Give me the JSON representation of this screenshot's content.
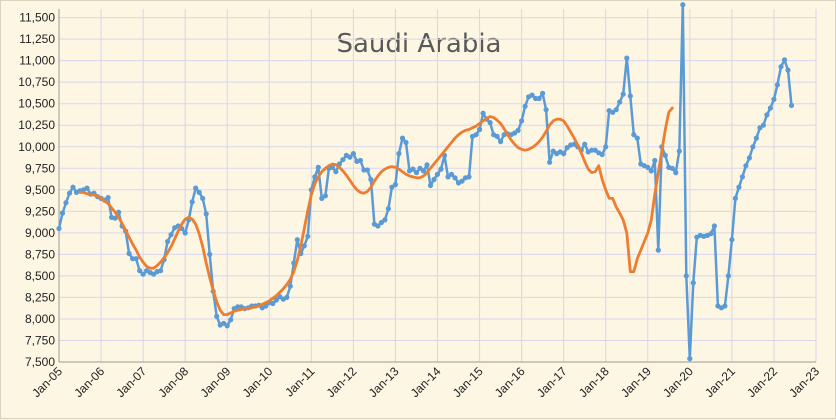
{
  "chart_data": {
    "type": "line",
    "title": "Saudi Arabia",
    "xlabel": "",
    "ylabel": "",
    "x_ticks": [
      "Jan-05",
      "Jan-06",
      "Jan-07",
      "Jan-08",
      "Jan-09",
      "Jan-10",
      "Jan-11",
      "Jan-12",
      "Jan-13",
      "Jan-14",
      "Jan-15",
      "Jan-16",
      "Jan-17",
      "Jan-18",
      "Jan-19",
      "Jan-20",
      "Jan-21",
      "Jan-22",
      "Jan-23"
    ],
    "y_ticks": [
      "7,500",
      "7,750",
      "8,000",
      "8,250",
      "8,500",
      "8,750",
      "9,000",
      "9,250",
      "9,500",
      "9,750",
      "10,000",
      "10,250",
      "10,500",
      "10,750",
      "11,000",
      "11,250",
      "11,500"
    ],
    "ylim": [
      7500,
      11600
    ],
    "grid": true,
    "colors": {
      "background": "#fdf6e3",
      "grid": "#d9d5ee",
      "monthly": "#5b9bd5",
      "average": "#ed7d31"
    },
    "series": [
      {
        "name": "",
        "style": "line-with-markers",
        "x_start": "Jan-05",
        "interval": "month",
        "values": [
          9050,
          9230,
          9350,
          9460,
          9530,
          9470,
          9490,
          9500,
          9520,
          9450,
          9460,
          9420,
          9400,
          9380,
          9410,
          9180,
          9170,
          9240,
          9080,
          9020,
          8760,
          8700,
          8700,
          8560,
          8520,
          8560,
          8540,
          8520,
          8550,
          8560,
          8690,
          8900,
          8980,
          9060,
          9080,
          9050,
          9000,
          9150,
          9360,
          9520,
          9470,
          9400,
          9220,
          8750,
          8320,
          8030,
          7930,
          7950,
          7920,
          7990,
          8120,
          8140,
          8140,
          8120,
          8130,
          8150,
          8150,
          8160,
          8130,
          8150,
          8190,
          8180,
          8220,
          8260,
          8230,
          8250,
          8380,
          8650,
          8920,
          8760,
          8850,
          8960,
          9500,
          9650,
          9760,
          9400,
          9430,
          9750,
          9760,
          9710,
          9800,
          9850,
          9900,
          9880,
          9920,
          9830,
          9840,
          9730,
          9730,
          9620,
          9100,
          9080,
          9120,
          9150,
          9280,
          9530,
          9560,
          9920,
          10100,
          10050,
          9720,
          9740,
          9700,
          9750,
          9720,
          9790,
          9550,
          9620,
          9680,
          9740,
          9900,
          9650,
          9680,
          9640,
          9580,
          9600,
          9640,
          9650,
          10120,
          10140,
          10200,
          10390,
          10320,
          10280,
          10140,
          10120,
          10060,
          10140,
          10150,
          10140,
          10160,
          10190,
          10300,
          10470,
          10580,
          10600,
          10560,
          10560,
          10620,
          10430,
          9820,
          9950,
          9920,
          9940,
          9920,
          9990,
          10020,
          10030,
          10000,
          9960,
          10030,
          9940,
          9960,
          9960,
          9930,
          9910,
          10000,
          10420,
          10400,
          10430,
          10520,
          10610,
          11030,
          10590,
          10140,
          10100,
          9800,
          9780,
          9760,
          9720,
          9840,
          8800,
          10000,
          9900,
          9760,
          9750,
          9700,
          9950,
          11650,
          8500,
          7540,
          8420,
          8950,
          8970,
          8960,
          8970,
          8990,
          9080,
          8150,
          8130,
          8150,
          8500,
          8920,
          9400,
          9530,
          9650,
          9780,
          9870,
          10000,
          10100,
          10220,
          10250,
          10370,
          10450,
          10550,
          10720,
          10930,
          11010,
          10890,
          10480
        ]
      },
      {
        "name": "",
        "style": "smooth-line",
        "x_start": "Jul-05",
        "interval": "month",
        "values": [
          9470,
          9470,
          9455,
          9445,
          9440,
          9425,
          9400,
          9370,
          9340,
          9290,
          9240,
          9180,
          9110,
          9030,
          8950,
          8870,
          8800,
          8720,
          8660,
          8610,
          8590,
          8590,
          8620,
          8660,
          8710,
          8770,
          8840,
          8930,
          9020,
          9100,
          9160,
          9180,
          9160,
          9100,
          8990,
          8840,
          8650,
          8480,
          8330,
          8200,
          8100,
          8050,
          8050,
          8070,
          8090,
          8100,
          8110,
          8120,
          8120,
          8130,
          8140,
          8150,
          8170,
          8190,
          8210,
          8240,
          8270,
          8310,
          8350,
          8400,
          8460,
          8550,
          8680,
          8850,
          9050,
          9260,
          9440,
          9570,
          9650,
          9710,
          9750,
          9780,
          9800,
          9790,
          9760,
          9720,
          9670,
          9610,
          9550,
          9500,
          9470,
          9460,
          9480,
          9530,
          9600,
          9660,
          9710,
          9740,
          9760,
          9770,
          9760,
          9740,
          9710,
          9680,
          9660,
          9650,
          9640,
          9640,
          9660,
          9700,
          9750,
          9800,
          9850,
          9900,
          9950,
          10000,
          10050,
          10100,
          10140,
          10170,
          10190,
          10200,
          10220,
          10240,
          10270,
          10300,
          10330,
          10350,
          10340,
          10310,
          10270,
          10210,
          10140,
          10080,
          10030,
          9990,
          9970,
          9960,
          9970,
          9990,
          10020,
          10060,
          10110,
          10180,
          10250,
          10300,
          10320,
          10320,
          10300,
          10240,
          10170,
          10100,
          10020,
          9930,
          9830,
          9740,
          9700,
          9710,
          9780,
          9620,
          9500,
          9400,
          9400,
          9300,
          9230,
          9150,
          9000,
          8550,
          8550,
          8700,
          8800,
          8900,
          9000,
          9150,
          9450,
          9700,
          9950,
          10200,
          10400,
          10450
        ]
      }
    ]
  }
}
